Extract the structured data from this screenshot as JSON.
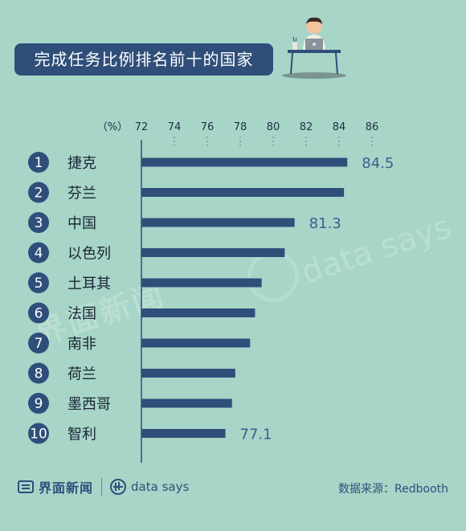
{
  "title": "完成任务比例排名前十的国家",
  "chart_data": {
    "type": "bar",
    "orientation": "horizontal",
    "unit_label": "（%）",
    "xlim": [
      72,
      86
    ],
    "x_ticks": [
      "72",
      "74",
      "76",
      "78",
      "80",
      "82",
      "84",
      "86"
    ],
    "ranks": [
      "1",
      "2",
      "3",
      "4",
      "5",
      "6",
      "7",
      "8",
      "9",
      "10"
    ],
    "categories": [
      "捷克",
      "芬兰",
      "中国",
      "以色列",
      "土耳其",
      "法国",
      "南非",
      "荷兰",
      "墨西哥",
      "智利"
    ],
    "values": [
      84.5,
      84.3,
      81.3,
      80.7,
      79.3,
      78.9,
      78.6,
      77.7,
      77.5,
      77.1
    ],
    "data_labels": [
      "84.5",
      "",
      "81.3",
      "",
      "",
      "",
      "",
      "",
      "",
      "77.1"
    ],
    "colors": {
      "bar": "#2f4f7a",
      "rank_circle": "#2f4f7a",
      "label_value": "#3a5f8f",
      "tick_text": "#1f2f45",
      "axis": "#2f4f7a"
    }
  },
  "footer": {
    "brand": "界面新闻",
    "brand2": "data says",
    "source": "数据来源：Redbooth"
  },
  "watermark": {
    "text1": "界面新闻",
    "text2": "data says"
  },
  "illustration": "person-at-desk-with-laptop"
}
